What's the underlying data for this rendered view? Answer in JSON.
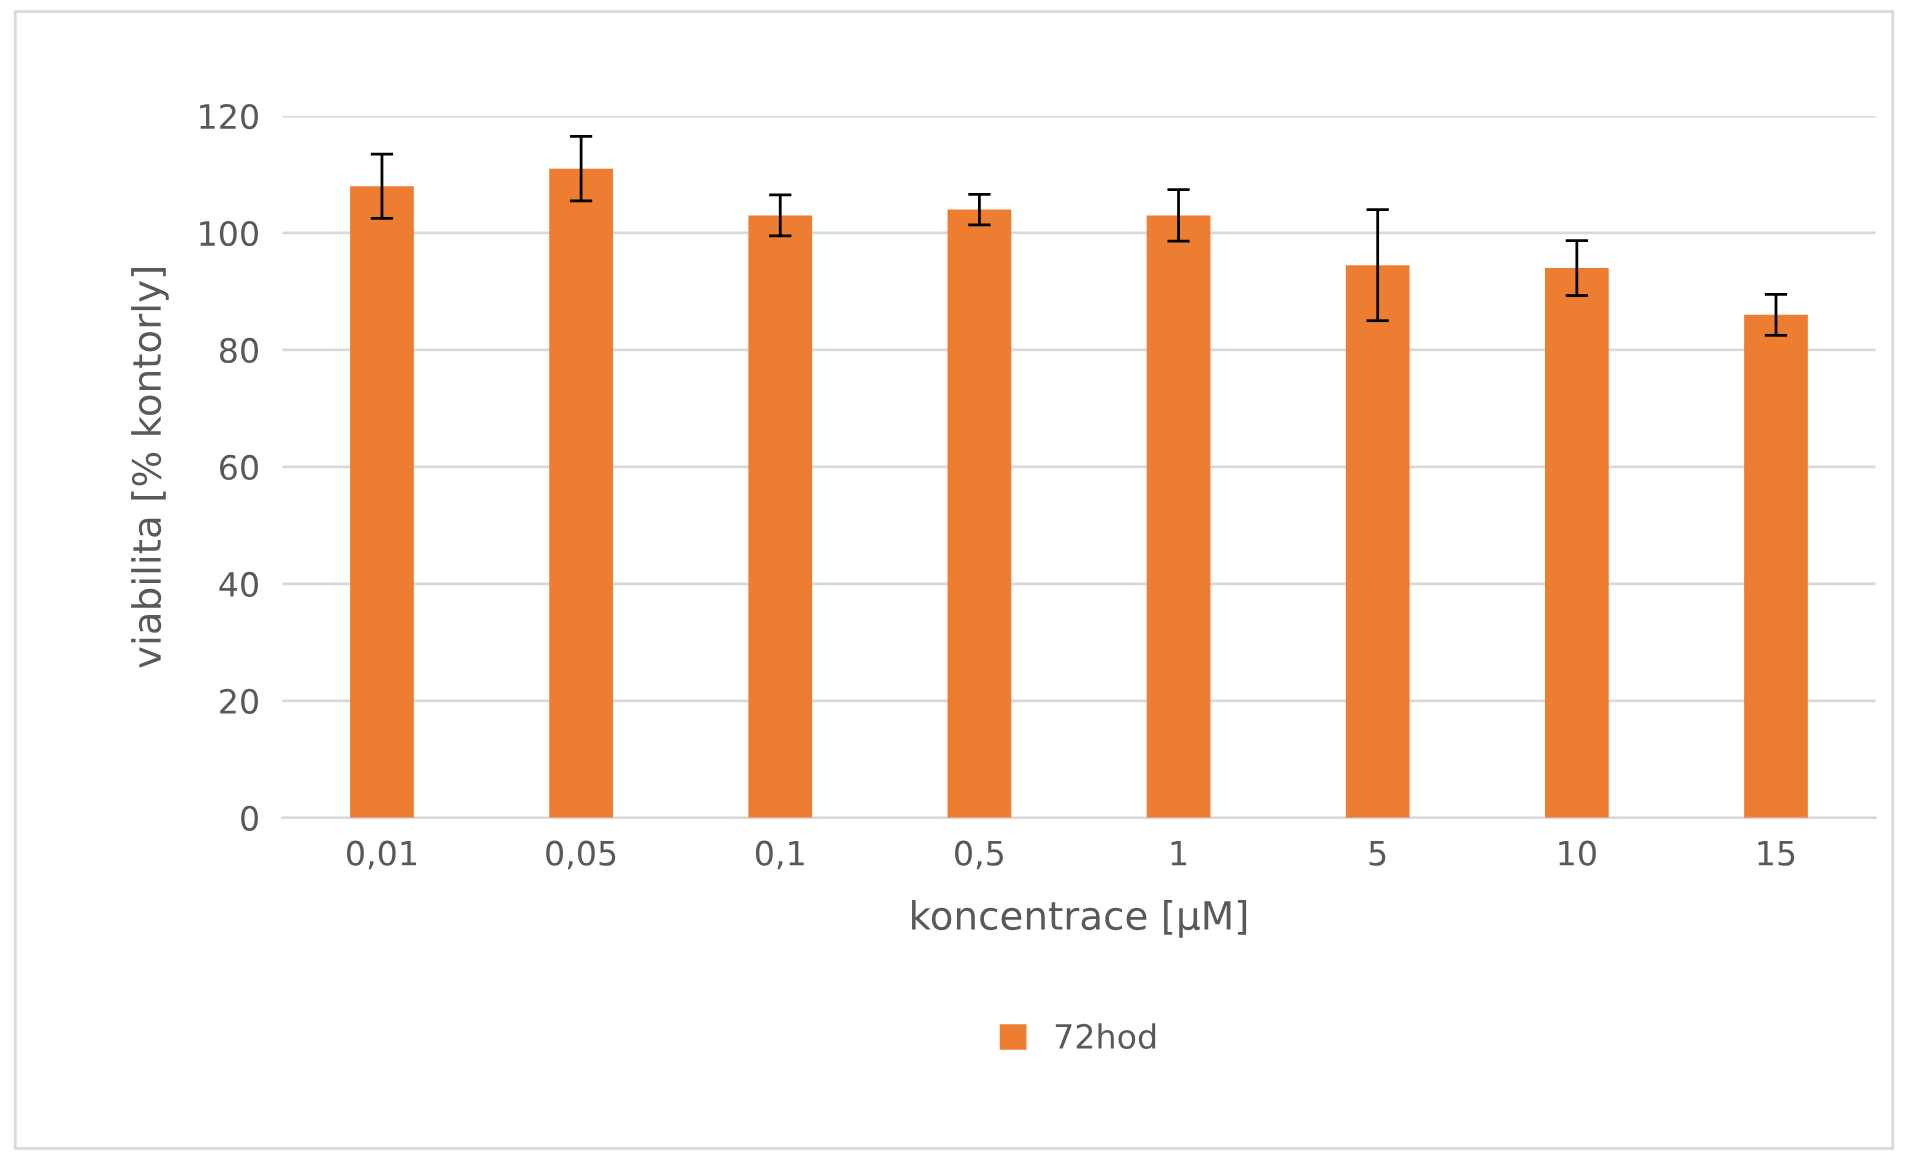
{
  "chart_data": {
    "type": "bar",
    "xlabel": "koncentrace [µM]",
    "ylabel": "viabilita [% kontorly]",
    "categories": [
      "0,01",
      "0,05",
      "0,1",
      "0,5",
      "1",
      "5",
      "10",
      "15"
    ],
    "series": [
      {
        "name": "72hod",
        "color": "#ed7d31",
        "values": [
          108,
          111,
          103,
          104,
          103,
          94.5,
          94,
          86
        ],
        "errors": [
          5.5,
          5.5,
          3.5,
          2.6,
          4.4,
          9.5,
          4.7,
          3.5
        ]
      }
    ],
    "ylim": [
      0,
      120
    ],
    "yticks": [
      0,
      20,
      40,
      60,
      80,
      100,
      120
    ],
    "grid": "y",
    "legend": "bottom"
  }
}
